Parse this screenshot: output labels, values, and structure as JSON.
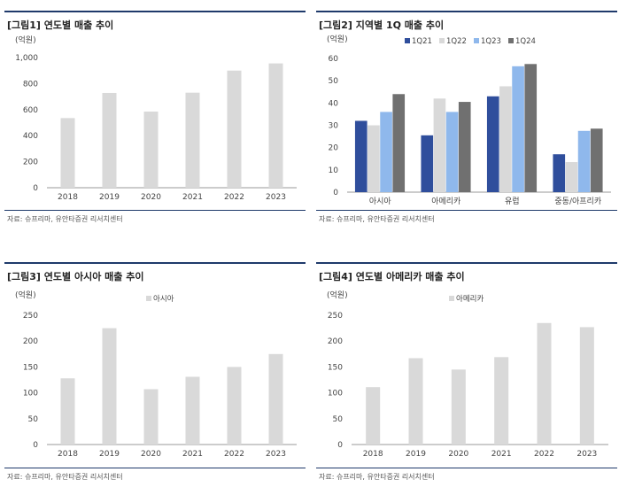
{
  "panels": [
    {
      "title": "[그림1] 연도별 매출 추이",
      "source": "자료: 슈프리마, 유안타증권 리서치센터",
      "chart_data": {
        "type": "bar",
        "unit_label": "(억원)",
        "categories": [
          "2018",
          "2019",
          "2020",
          "2021",
          "2022",
          "2023"
        ],
        "series": [
          {
            "values": [
              535,
              728,
              585,
              730,
              900,
              955
            ],
            "color": "#d9d9d9"
          }
        ],
        "ylim": [
          0,
          1000
        ],
        "yticks": [
          0,
          200,
          400,
          600,
          800,
          1000
        ],
        "ytick_labels": [
          "0",
          "200",
          "400",
          "600",
          "800",
          "1,000"
        ],
        "grid": false
      }
    },
    {
      "title": "[그림2] 지역별 1Q 매출 추이",
      "source": "자료: 슈프리마, 유안타증권 리서치센터",
      "chart_data": {
        "type": "bar",
        "unit_label": "(억원)",
        "categories": [
          "아시아",
          "아메리카",
          "유럽",
          "중동/아프리카"
        ],
        "series": [
          {
            "name": "1Q21",
            "values": [
              32,
              25.5,
              43,
              17
            ],
            "color": "#2f4e9c"
          },
          {
            "name": "1Q22",
            "values": [
              30,
              42,
              47.5,
              13.5
            ],
            "color": "#d9d9d9"
          },
          {
            "name": "1Q23",
            "values": [
              36,
              36,
              56.5,
              27.5
            ],
            "color": "#8fb8ec"
          },
          {
            "name": "1Q24",
            "values": [
              44,
              40.5,
              57.5,
              28.5
            ],
            "color": "#707070"
          }
        ],
        "ylim": [
          0,
          60
        ],
        "yticks": [
          0,
          10,
          20,
          30,
          40,
          50,
          60
        ],
        "ytick_labels": [
          "0",
          "10",
          "20",
          "30",
          "40",
          "50",
          "60"
        ],
        "legend": "top",
        "grid": false
      }
    },
    {
      "title": "[그림3] 연도별 아시아 매출 추이",
      "source": "자료: 슈프리마, 유안타증권 리서치센터",
      "chart_data": {
        "type": "bar",
        "unit_label": "(억원)",
        "categories": [
          "2018",
          "2019",
          "2020",
          "2021",
          "2022",
          "2023"
        ],
        "series": [
          {
            "name": "아시아",
            "values": [
              128,
              225,
              107,
              131,
              150,
              175
            ],
            "color": "#d9d9d9"
          }
        ],
        "ylim": [
          0,
          250
        ],
        "yticks": [
          0,
          50,
          100,
          150,
          200,
          250
        ],
        "ytick_labels": [
          "0",
          "50",
          "100",
          "150",
          "200",
          "250"
        ],
        "legend": "top",
        "grid": false
      }
    },
    {
      "title": "[그림4] 연도별 아메리카 매출 추이",
      "source": "자료: 슈프리마, 유안타증권 리서치센터",
      "chart_data": {
        "type": "bar",
        "unit_label": "(억원)",
        "categories": [
          "2018",
          "2019",
          "2020",
          "2021",
          "2022",
          "2023"
        ],
        "series": [
          {
            "name": "아메리카",
            "values": [
              111,
              167,
              145,
              169,
              235,
              227
            ],
            "color": "#d9d9d9"
          }
        ],
        "ylim": [
          0,
          250
        ],
        "yticks": [
          0,
          50,
          100,
          150,
          200,
          250
        ],
        "ytick_labels": [
          "0",
          "50",
          "100",
          "150",
          "200",
          "250"
        ],
        "legend": "top",
        "grid": false
      }
    }
  ]
}
